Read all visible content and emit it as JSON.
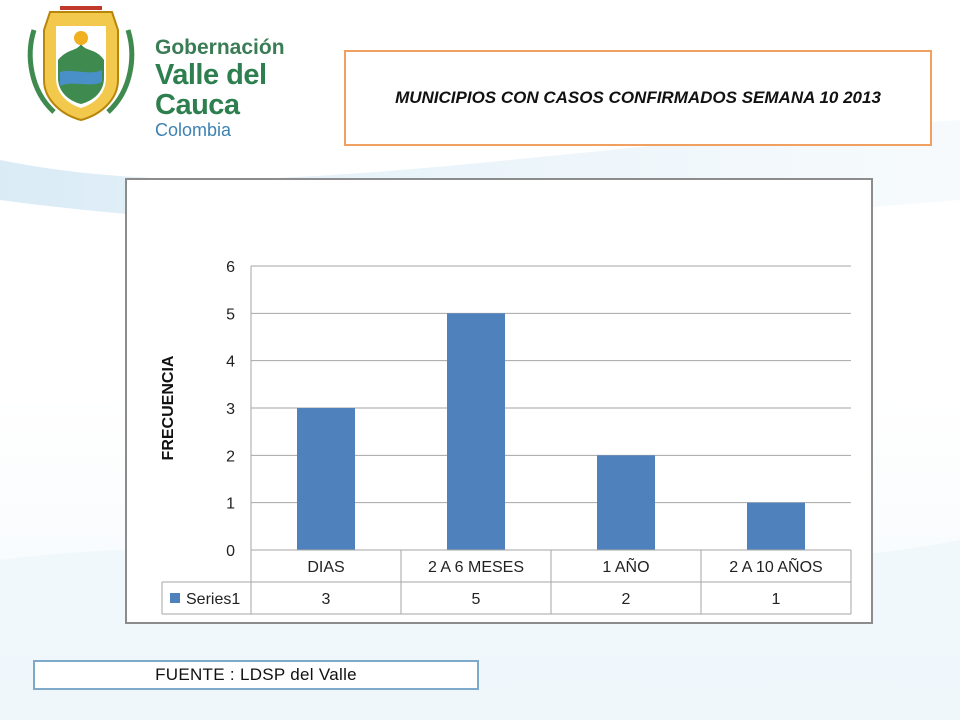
{
  "header": {
    "logo": {
      "line1": "Gobernación",
      "line2": "Valle del Cauca",
      "line3": "Colombia"
    },
    "title": "MUNICIPIOS CON CASOS CONFIRMADOS SEMANA 10 2013"
  },
  "footer": {
    "source": "FUENTE : LDSP  del  Valle"
  },
  "colors": {
    "bar": "#4f81bd",
    "title_border": "#f0a060",
    "source_border": "#7fa9c9"
  },
  "chart_data": {
    "type": "bar",
    "categories": [
      "DIAS",
      "2 A 6 MESES",
      "1 AÑO",
      "2 A 10 AÑOS"
    ],
    "series": [
      {
        "name": "Series1",
        "values": [
          3,
          5,
          2,
          1
        ]
      }
    ],
    "ylabel": "FRECUENCIA",
    "xlabel": "",
    "ylim": [
      0,
      6
    ],
    "yticks": [
      0,
      1,
      2,
      3,
      4,
      5,
      6
    ],
    "grid": true,
    "data_table": true
  }
}
